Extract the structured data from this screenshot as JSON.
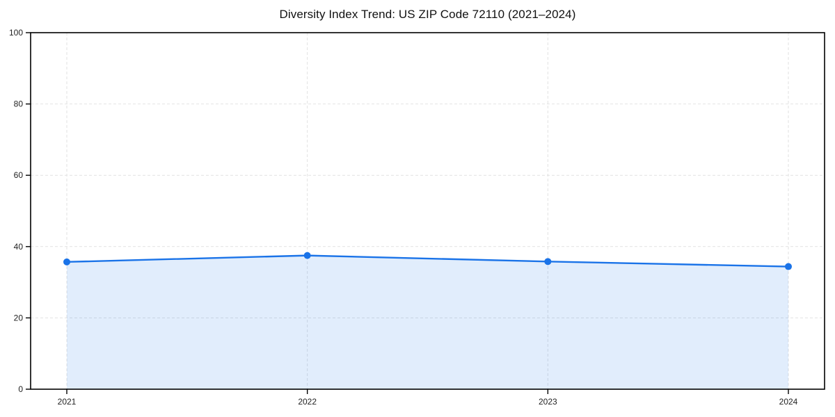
{
  "title": "Diversity Index Trend: US ZIP Code 72110 (2021–2024)",
  "colors": {
    "background": "#ffffff",
    "line": "#1a73e8",
    "marker": "#1a73e8",
    "area_fill": "rgba(26,115,232,0.13)",
    "grid": "#e2e2e2",
    "spine": "#000000",
    "tick": "#000000",
    "tick_label": "#222222",
    "title_text": "#111111"
  },
  "chart_data": {
    "type": "line",
    "title": "Diversity Index Trend: US ZIP Code 72110 (2021–2024)",
    "categories": [
      "2021",
      "2022",
      "2023",
      "2024"
    ],
    "series": [
      {
        "name": "Diversity Index",
        "values": [
          35.7,
          37.5,
          35.8,
          34.4
        ]
      }
    ],
    "xlabel": "",
    "ylabel": "",
    "ylim": [
      0,
      100
    ],
    "yticks": [
      0,
      20,
      40,
      60,
      80,
      100
    ],
    "grid": true,
    "grid_style": "dashed",
    "legend": "none",
    "area_fill": true,
    "markers": true,
    "marker_shape": "circle"
  }
}
